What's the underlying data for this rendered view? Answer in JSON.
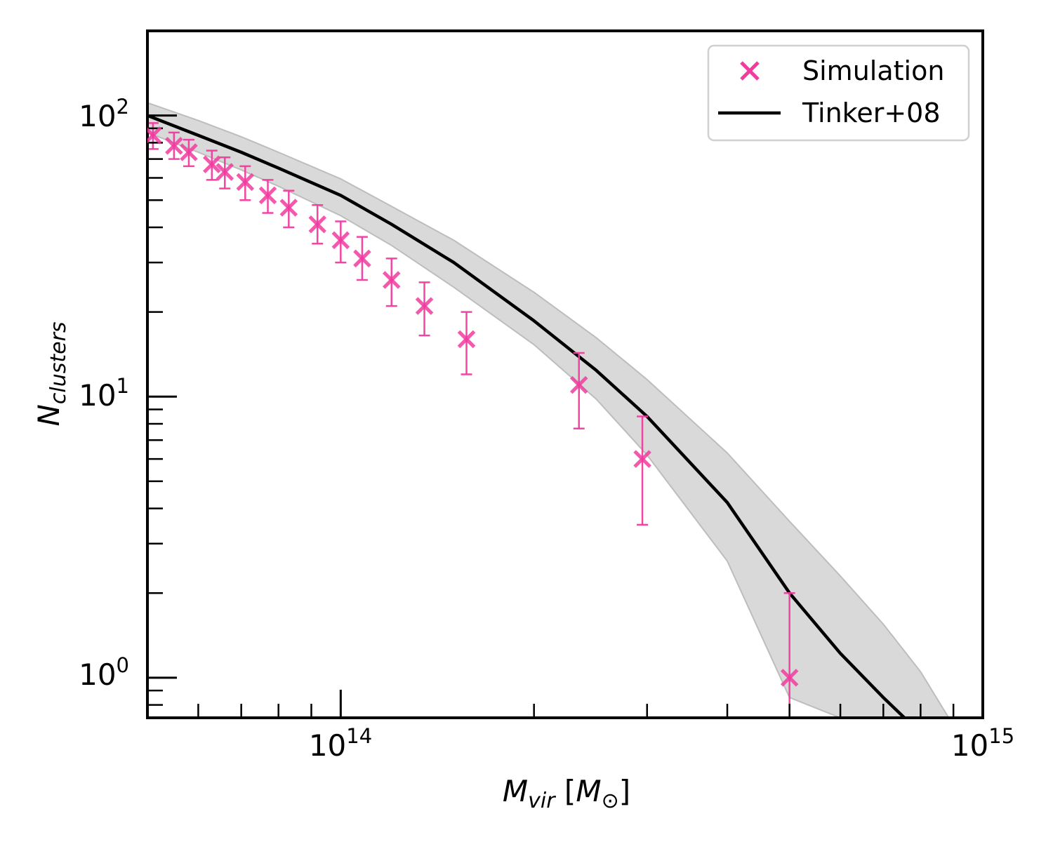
{
  "chart_data": {
    "type": "scatter",
    "title": "",
    "xscale": "log",
    "yscale": "log",
    "xlim": [
      50000000000000.0,
      1000000000000000.0
    ],
    "ylim": [
      0.72,
      200
    ],
    "xlabel": {
      "main": "M",
      "sub": "vir",
      "bracket_open": " [",
      "unit": "M",
      "unit_sub": "⊙",
      "bracket_close": "]"
    },
    "ylabel": {
      "main": "N",
      "sub": "clusters"
    },
    "x_ticks": [
      {
        "value": 100000000000000.0,
        "base": "10",
        "exp": "14"
      },
      {
        "value": 1000000000000000.0,
        "base": "10",
        "exp": "15"
      }
    ],
    "y_ticks": [
      {
        "value": 1,
        "base": "10",
        "exp": "0"
      },
      {
        "value": 10,
        "base": "10",
        "exp": "1"
      },
      {
        "value": 100,
        "base": "10",
        "exp": "2"
      }
    ],
    "legend": {
      "position": "top-right",
      "entries": [
        {
          "label": "Simulation",
          "marker": "x",
          "color": "#f03c9f"
        },
        {
          "label": "Tinker+08",
          "marker": "line",
          "color": "#000000"
        }
      ]
    },
    "series": [
      {
        "name": "Simulation",
        "kind": "scatter-errorbar",
        "color": "#f03c9f",
        "points": [
          {
            "x": 51000000000000.0,
            "y": 85,
            "lo": 76,
            "hi": 94
          },
          {
            "x": 55000000000000.0,
            "y": 78,
            "lo": 70,
            "hi": 87
          },
          {
            "x": 58000000000000.0,
            "y": 74,
            "lo": 66,
            "hi": 82
          },
          {
            "x": 63000000000000.0,
            "y": 67,
            "lo": 59,
            "hi": 75
          },
          {
            "x": 66000000000000.0,
            "y": 63,
            "lo": 55,
            "hi": 71
          },
          {
            "x": 71000000000000.0,
            "y": 58,
            "lo": 50,
            "hi": 66
          },
          {
            "x": 77000000000000.0,
            "y": 52,
            "lo": 45,
            "hi": 59
          },
          {
            "x": 83000000000000.0,
            "y": 47,
            "lo": 40,
            "hi": 54
          },
          {
            "x": 92000000000000.0,
            "y": 41,
            "lo": 35,
            "hi": 48
          },
          {
            "x": 100000000000000.0,
            "y": 36,
            "lo": 30,
            "hi": 42
          },
          {
            "x": 108000000000000.0,
            "y": 31,
            "lo": 26,
            "hi": 37
          },
          {
            "x": 120000000000000.0,
            "y": 26,
            "lo": 21,
            "hi": 31
          },
          {
            "x": 135000000000000.0,
            "y": 21,
            "lo": 16.5,
            "hi": 25.5
          },
          {
            "x": 157000000000000.0,
            "y": 16,
            "lo": 12,
            "hi": 20
          },
          {
            "x": 235000000000000.0,
            "y": 11,
            "lo": 7.7,
            "hi": 14.3
          },
          {
            "x": 295000000000000.0,
            "y": 6,
            "lo": 3.5,
            "hi": 8.5
          },
          {
            "x": 500000000000000.0,
            "y": 1,
            "lo": 0.5,
            "hi": 2.0
          }
        ]
      },
      {
        "name": "Tinker+08",
        "kind": "line",
        "color": "#000000",
        "x": [
          50000000000000.0,
          60000000000000.0,
          70000000000000.0,
          80000000000000.0,
          100000000000000.0,
          120000000000000.0,
          150000000000000.0,
          200000000000000.0,
          250000000000000.0,
          300000000000000.0,
          400000000000000.0,
          500000000000000.0,
          600000000000000.0,
          700000000000000.0,
          755000000000000.0
        ],
        "y": [
          100,
          85,
          74,
          65,
          52,
          41,
          30,
          18.6,
          12.4,
          8.5,
          4.2,
          2.0,
          1.22,
          0.85,
          0.72
        ]
      },
      {
        "name": "Tinker+08 band",
        "kind": "band",
        "color": "#d9d9d9",
        "edge_color": "#bdbdbd",
        "x": [
          50000000000000.0,
          60000000000000.0,
          70000000000000.0,
          80000000000000.0,
          100000000000000.0,
          120000000000000.0,
          150000000000000.0,
          200000000000000.0,
          250000000000000.0,
          300000000000000.0,
          400000000000000.0,
          500000000000000.0,
          600000000000000.0,
          700000000000000.0,
          800000000000000.0,
          885000000000000.0
        ],
        "lower": [
          87,
          74,
          64,
          56,
          44,
          34.5,
          24.5,
          15.3,
          9.8,
          6.2,
          2.6,
          0.85,
          0.72,
          0.72,
          0.72,
          0.72
        ],
        "upper": [
          111,
          96,
          84,
          74,
          59.5,
          47.5,
          36,
          23.5,
          16.2,
          11.5,
          6.3,
          3.6,
          2.3,
          1.55,
          1.05,
          0.72
        ]
      }
    ]
  }
}
